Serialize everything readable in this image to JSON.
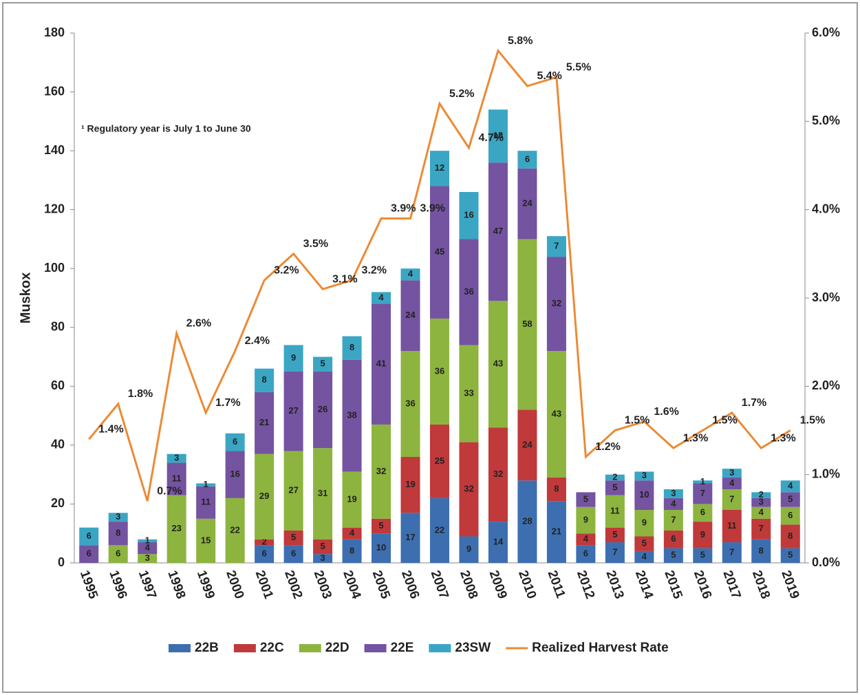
{
  "chart_data": {
    "type": "bar",
    "annotations": [
      "¹ Regulatory year is July 1 to June 30"
    ],
    "ylabel": "Muskox",
    "categories": [
      "1995",
      "1996",
      "1997",
      "1998",
      "1999",
      "2000",
      "2001",
      "2002",
      "2003",
      "2004",
      "2005",
      "2006",
      "2007",
      "2008",
      "2009",
      "2010",
      "2011",
      "2012",
      "2013",
      "2014",
      "2015",
      "2016",
      "2017",
      "2018",
      "2019"
    ],
    "stacked": true,
    "series": [
      {
        "name": "22B",
        "color": "#3d6fb0",
        "values": [
          0,
          0,
          0,
          0,
          0,
          0,
          6,
          6,
          3,
          8,
          10,
          17,
          22,
          9,
          14,
          28,
          21,
          6,
          7,
          4,
          5,
          5,
          7,
          8,
          5
        ]
      },
      {
        "name": "22C",
        "color": "#c0393b",
        "values": [
          0,
          0,
          0,
          0,
          0,
          0,
          2,
          5,
          5,
          4,
          5,
          19,
          25,
          32,
          32,
          24,
          8,
          4,
          5,
          5,
          6,
          9,
          11,
          7,
          8
        ]
      },
      {
        "name": "22D",
        "color": "#8db43f",
        "values": [
          0,
          6,
          3,
          23,
          15,
          22,
          29,
          27,
          31,
          19,
          32,
          36,
          36,
          33,
          43,
          58,
          43,
          9,
          11,
          9,
          7,
          6,
          7,
          4,
          6
        ]
      },
      {
        "name": "22E",
        "color": "#7453a0",
        "values": [
          6,
          8,
          4,
          11,
          11,
          16,
          21,
          27,
          26,
          38,
          41,
          24,
          45,
          36,
          47,
          24,
          32,
          5,
          5,
          10,
          4,
          7,
          4,
          3,
          5
        ]
      },
      {
        "name": "23SW",
        "color": "#3aa6c4",
        "values": [
          6,
          3,
          1,
          3,
          1,
          6,
          8,
          9,
          5,
          8,
          4,
          4,
          12,
          16,
          18,
          6,
          7,
          0,
          2,
          3,
          3,
          1,
          3,
          2,
          4
        ]
      },
      {
        "name": "Realized Harvest Rate",
        "type": "line",
        "axis": "y2",
        "color": "#ec8a35",
        "values": [
          1.4,
          1.8,
          0.7,
          2.6,
          1.7,
          2.4,
          3.2,
          3.5,
          3.1,
          3.2,
          3.9,
          3.9,
          5.2,
          4.7,
          5.8,
          5.4,
          5.5,
          1.2,
          1.5,
          1.6,
          1.3,
          1.5,
          1.7,
          1.3,
          1.5
        ],
        "value_labels": [
          "1.4%",
          "1.8%",
          "0.7%",
          "2.6%",
          "1.7%",
          "2.4%",
          "3.2%",
          "3.5%",
          "3.1%",
          "3.2%",
          "3.9%",
          "3.9%",
          "5.2%",
          "4.7%",
          "5.8%",
          "5.4%",
          "5.5%",
          "1.2%",
          "1.5%",
          "1.6%",
          "1.3%",
          "1.5%",
          "1.7%",
          "1.3%",
          "1.5%"
        ]
      }
    ],
    "ylim": [
      0,
      180
    ],
    "yticks": [
      0,
      20,
      40,
      60,
      80,
      100,
      120,
      140,
      160,
      180
    ],
    "y2lim": [
      0,
      6
    ],
    "y2ticks": [
      {
        "value": 0,
        "label": "0.0%"
      },
      {
        "value": 1,
        "label": "1.0%"
      },
      {
        "value": 2,
        "label": "2.0%"
      },
      {
        "value": 3,
        "label": "3.0%"
      },
      {
        "value": 4,
        "label": "4.0%"
      },
      {
        "value": 5,
        "label": "5.0%"
      },
      {
        "value": 6,
        "label": "6.0%"
      }
    ],
    "legend": "bottom"
  }
}
